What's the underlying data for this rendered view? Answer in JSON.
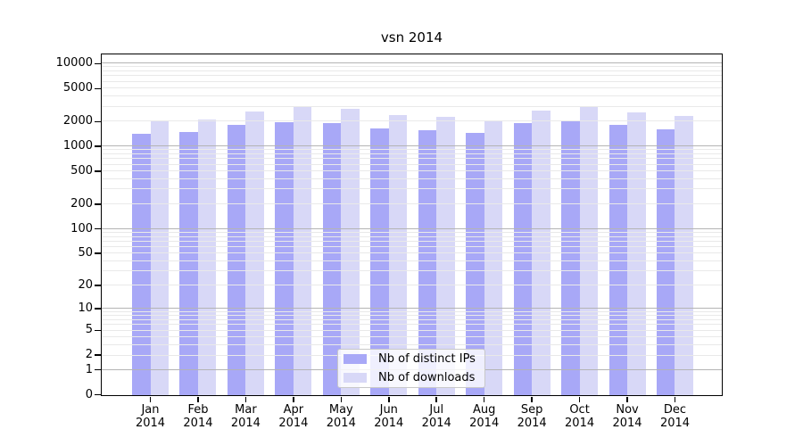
{
  "title": "vsn 2014",
  "colors": {
    "ips": "#a8a8f7",
    "downloads": "#d8d8f7",
    "grid_major": "#b4b4b4",
    "grid_minor": "#e9e9e9",
    "axis": "#000000",
    "legend_border": "#c8c8c8"
  },
  "legend": {
    "items": [
      {
        "label": "Nb of distinct IPs",
        "color_key": "ips"
      },
      {
        "label": "Nb of downloads",
        "color_key": "downloads"
      }
    ]
  },
  "chart_data": {
    "type": "bar",
    "title": "vsn 2014",
    "categories": [
      "Jan",
      "Feb",
      "Mar",
      "Apr",
      "May",
      "Jun",
      "Jul",
      "Aug",
      "Sep",
      "Oct",
      "Nov",
      "Dec"
    ],
    "x_year_line": "2014",
    "series": [
      {
        "name": "Nb of distinct IPs",
        "values": [
          1400,
          1490,
          1810,
          1930,
          1900,
          1650,
          1550,
          1440,
          1880,
          2010,
          1800,
          1610
        ]
      },
      {
        "name": "Nb of downloads",
        "values": [
          2000,
          2120,
          2640,
          3040,
          2830,
          2350,
          2260,
          2050,
          2660,
          2960,
          2580,
          2300
        ]
      }
    ],
    "y_scale": "log1p",
    "ylim": [
      0,
      12800
    ],
    "y_ticks": [
      0,
      1,
      2,
      5,
      10,
      20,
      50,
      100,
      200,
      500,
      1000,
      2000,
      5000,
      10000
    ],
    "y_grid_major": [
      1,
      10,
      100,
      1000,
      10000
    ],
    "y_grid_minor": [
      2,
      3,
      4,
      5,
      6,
      7,
      8,
      9,
      20,
      30,
      40,
      50,
      60,
      70,
      80,
      90,
      200,
      300,
      400,
      500,
      600,
      700,
      800,
      900,
      2000,
      3000,
      4000,
      5000,
      6000,
      7000,
      8000,
      9000
    ],
    "grid": true,
    "legend_position": "lower-center"
  }
}
